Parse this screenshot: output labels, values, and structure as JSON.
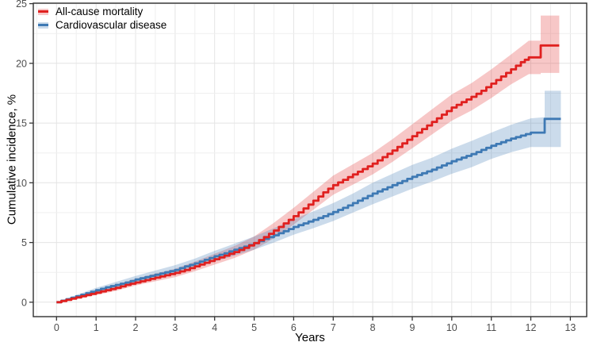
{
  "figure": {
    "x_axis_title": "Years",
    "y_axis_title": "Cumulative incidence, %"
  },
  "legend": {
    "items": [
      {
        "label": "All-cause mortality",
        "color": "#e0201f",
        "band_color": "rgba(224,32,31,0.25)"
      },
      {
        "label": "Cardiovascular disease",
        "color": "#3e79b4",
        "band_color": "rgba(62,121,180,0.27)"
      }
    ]
  },
  "chart_data": {
    "type": "line",
    "subtype": "step-cumulative-incidence",
    "title": "",
    "xlabel": "Years",
    "ylabel": "Cumulative incidence, %",
    "x_ticks": [
      0,
      1,
      2,
      3,
      4,
      5,
      6,
      7,
      8,
      9,
      10,
      11,
      12,
      13
    ],
    "y_ticks": [
      0,
      5,
      10,
      15,
      20,
      25
    ],
    "xlim": [
      -0.588,
      13.414
    ],
    "ylim": [
      -1.21,
      25.04
    ],
    "x_minor_grid_step": 0.5,
    "y_minor_grid_step": 2.5,
    "grid_color_major": "#e4e4e4",
    "grid_color_minor": "#efefef",
    "panel_border_color": "#2f2f2f",
    "tick_color": "#333333",
    "legend_position": "inside-top-left",
    "series": [
      {
        "name": "All-cause mortality",
        "key": "all-cause-mortality",
        "color": "#e0201f",
        "band_color": "rgba(224,32,31,0.25)",
        "points": [
          [
            0,
            0
          ],
          [
            0.25,
            0.2
          ],
          [
            0.5,
            0.4
          ],
          [
            0.75,
            0.6
          ],
          [
            1,
            0.8
          ],
          [
            1.25,
            1.0
          ],
          [
            1.5,
            1.2
          ],
          [
            1.75,
            1.45
          ],
          [
            2,
            1.65
          ],
          [
            2.25,
            1.85
          ],
          [
            2.5,
            2.05
          ],
          [
            2.75,
            2.25
          ],
          [
            3,
            2.45
          ],
          [
            3.25,
            2.7
          ],
          [
            3.5,
            3.0
          ],
          [
            3.75,
            3.3
          ],
          [
            4,
            3.6
          ],
          [
            4.25,
            3.9
          ],
          [
            4.5,
            4.2
          ],
          [
            4.75,
            4.55
          ],
          [
            5,
            4.95
          ],
          [
            5.25,
            5.45
          ],
          [
            5.5,
            6.0
          ],
          [
            5.75,
            6.6
          ],
          [
            6,
            7.2
          ],
          [
            6.25,
            7.85
          ],
          [
            6.5,
            8.5
          ],
          [
            6.75,
            9.2
          ],
          [
            7,
            9.8
          ],
          [
            7.25,
            10.25
          ],
          [
            7.5,
            10.7
          ],
          [
            7.75,
            11.15
          ],
          [
            8,
            11.6
          ],
          [
            8.25,
            12.15
          ],
          [
            8.5,
            12.7
          ],
          [
            8.75,
            13.3
          ],
          [
            9,
            13.9
          ],
          [
            9.25,
            14.5
          ],
          [
            9.5,
            15.1
          ],
          [
            9.75,
            15.7
          ],
          [
            10,
            16.3
          ],
          [
            10.25,
            16.75
          ],
          [
            10.5,
            17.2
          ],
          [
            10.75,
            17.7
          ],
          [
            11,
            18.3
          ],
          [
            11.25,
            18.9
          ],
          [
            11.5,
            19.5
          ],
          [
            11.75,
            20.1
          ],
          [
            11.95,
            20.5
          ],
          [
            12.25,
            21.5
          ],
          [
            12.72,
            21.5
          ]
        ],
        "band": [
          [
            0,
            0,
            0
          ],
          [
            0.5,
            0.3,
            0.5
          ],
          [
            1,
            0.6,
            1.0
          ],
          [
            1.5,
            0.95,
            1.45
          ],
          [
            2,
            1.4,
            1.95
          ],
          [
            2.5,
            1.75,
            2.4
          ],
          [
            3,
            2.1,
            2.8
          ],
          [
            3.5,
            2.6,
            3.4
          ],
          [
            4,
            3.15,
            4.05
          ],
          [
            4.5,
            3.7,
            4.7
          ],
          [
            5,
            4.4,
            5.5
          ],
          [
            5.5,
            5.35,
            6.65
          ],
          [
            6,
            6.5,
            7.9
          ],
          [
            6.5,
            7.75,
            9.25
          ],
          [
            7,
            9.0,
            10.6
          ],
          [
            7.5,
            9.85,
            11.55
          ],
          [
            8,
            10.7,
            12.5
          ],
          [
            8.5,
            11.75,
            13.65
          ],
          [
            9,
            12.9,
            14.9
          ],
          [
            9.5,
            14.05,
            16.15
          ],
          [
            10,
            15.2,
            17.4
          ],
          [
            10.5,
            16.05,
            18.35
          ],
          [
            11,
            17.1,
            19.5
          ],
          [
            11.5,
            18.25,
            20.75
          ],
          [
            11.95,
            19.1,
            21.9
          ],
          [
            12.25,
            19.1,
            21.9
          ],
          [
            12.25,
            19.2,
            24.0
          ],
          [
            12.72,
            19.2,
            24.0
          ]
        ]
      },
      {
        "name": "Cardiovascular disease",
        "key": "cardiovascular-disease",
        "color": "#3e79b4",
        "band_color": "rgba(62,121,180,0.27)",
        "points": [
          [
            0,
            0
          ],
          [
            0.25,
            0.25
          ],
          [
            0.5,
            0.5
          ],
          [
            0.75,
            0.75
          ],
          [
            1,
            1.0
          ],
          [
            1.25,
            1.25
          ],
          [
            1.5,
            1.45
          ],
          [
            1.75,
            1.65
          ],
          [
            2,
            1.9
          ],
          [
            2.25,
            2.1
          ],
          [
            2.5,
            2.3
          ],
          [
            2.75,
            2.5
          ],
          [
            3,
            2.7
          ],
          [
            3.25,
            3.0
          ],
          [
            3.5,
            3.25
          ],
          [
            3.75,
            3.55
          ],
          [
            4,
            3.85
          ],
          [
            4.25,
            4.1
          ],
          [
            4.5,
            4.4
          ],
          [
            4.75,
            4.65
          ],
          [
            5,
            4.95
          ],
          [
            5.25,
            5.3
          ],
          [
            5.5,
            5.6
          ],
          [
            5.75,
            5.95
          ],
          [
            6,
            6.3
          ],
          [
            6.25,
            6.6
          ],
          [
            6.5,
            6.9
          ],
          [
            6.75,
            7.2
          ],
          [
            7,
            7.55
          ],
          [
            7.25,
            7.9
          ],
          [
            7.5,
            8.3
          ],
          [
            7.75,
            8.7
          ],
          [
            8,
            9.1
          ],
          [
            8.25,
            9.45
          ],
          [
            8.5,
            9.8
          ],
          [
            8.75,
            10.15
          ],
          [
            9,
            10.5
          ],
          [
            9.25,
            10.8
          ],
          [
            9.5,
            11.1
          ],
          [
            9.75,
            11.45
          ],
          [
            10,
            11.8
          ],
          [
            10.25,
            12.1
          ],
          [
            10.5,
            12.4
          ],
          [
            10.75,
            12.75
          ],
          [
            11,
            13.1
          ],
          [
            11.25,
            13.4
          ],
          [
            11.5,
            13.7
          ],
          [
            11.75,
            13.95
          ],
          [
            12,
            14.2
          ],
          [
            12.35,
            15.35
          ],
          [
            12.76,
            15.35
          ]
        ],
        "band": [
          [
            0,
            0,
            0
          ],
          [
            0.5,
            0.4,
            0.6
          ],
          [
            1,
            0.8,
            1.2
          ],
          [
            1.5,
            1.2,
            1.7
          ],
          [
            2,
            1.6,
            2.2
          ],
          [
            2.5,
            2.0,
            2.65
          ],
          [
            3,
            2.35,
            3.1
          ],
          [
            3.5,
            2.85,
            3.65
          ],
          [
            4,
            3.4,
            4.3
          ],
          [
            4.5,
            3.9,
            4.9
          ],
          [
            5,
            4.4,
            5.5
          ],
          [
            5.5,
            5.0,
            6.2
          ],
          [
            6,
            5.65,
            6.95
          ],
          [
            6.5,
            6.2,
            7.6
          ],
          [
            7,
            6.8,
            8.3
          ],
          [
            7.5,
            7.5,
            9.1
          ],
          [
            8,
            8.2,
            10.0
          ],
          [
            8.5,
            8.85,
            10.75
          ],
          [
            9,
            9.5,
            11.5
          ],
          [
            9.5,
            10.1,
            12.1
          ],
          [
            10,
            10.75,
            12.85
          ],
          [
            10.5,
            11.3,
            13.5
          ],
          [
            11,
            12.0,
            14.2
          ],
          [
            11.5,
            12.55,
            14.85
          ],
          [
            12,
            13.0,
            15.4
          ],
          [
            12.35,
            13.0,
            15.5
          ],
          [
            12.35,
            13.0,
            17.7
          ],
          [
            12.76,
            13.0,
            17.7
          ]
        ]
      }
    ]
  }
}
